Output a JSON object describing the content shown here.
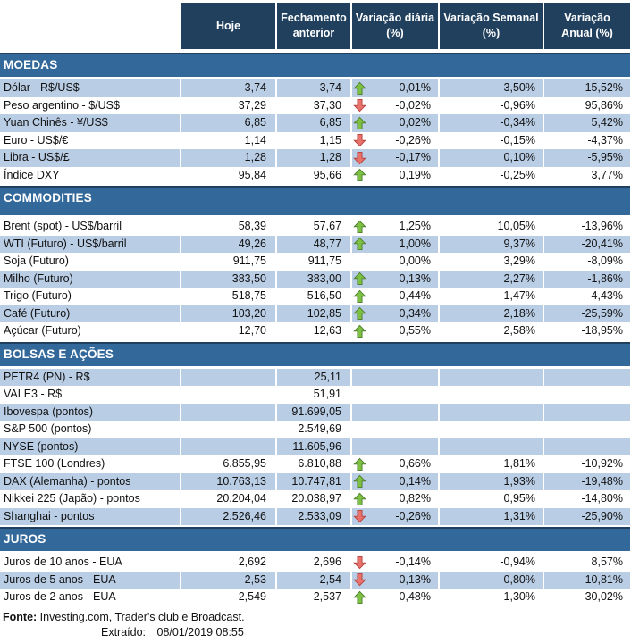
{
  "colors": {
    "header_navy": "#20405E",
    "section_blue": "#33689B",
    "row_blue": "#B9CDE5",
    "up_fill": "#7DC142",
    "up_stroke": "#4E7D2F",
    "down_fill": "#E8736C",
    "down_stroke": "#B8413D"
  },
  "header": {
    "cols": [
      {
        "l1": "Hoje",
        "l2": ""
      },
      {
        "l1": "Fechamento",
        "l2": "anterior"
      },
      {
        "l1": "Variação diária",
        "l2": "(%)"
      },
      {
        "l1": "Variação Semanal",
        "l2": "(%)"
      },
      {
        "l1": "Variação",
        "l2": "Anual (%)"
      }
    ]
  },
  "sections": [
    {
      "title": "MOEDAS",
      "rows": [
        {
          "label": "Dólar - R$/US$",
          "hoje": "3,74",
          "fechamento": "3,74",
          "arrow": "up",
          "diaria": "0,01%",
          "semanal": "-3,50%",
          "anual": "15,52%",
          "shade": true
        },
        {
          "label": "Peso argentino - $/US$",
          "hoje": "37,29",
          "fechamento": "37,30",
          "arrow": "down",
          "diaria": "-0,02%",
          "semanal": "-0,96%",
          "anual": "95,86%",
          "shade": false
        },
        {
          "label": "Yuan Chinês - ¥/US$",
          "hoje": "6,85",
          "fechamento": "6,85",
          "arrow": "up",
          "diaria": "0,02%",
          "semanal": "-0,34%",
          "anual": "5,42%",
          "shade": true
        },
        {
          "label": "Euro - US$/€",
          "hoje": "1,14",
          "fechamento": "1,15",
          "arrow": "down",
          "diaria": "-0,26%",
          "semanal": "-0,15%",
          "anual": "-4,37%",
          "shade": false
        },
        {
          "label": "Libra - US$/£",
          "hoje": "1,28",
          "fechamento": "1,28",
          "arrow": "down",
          "diaria": "-0,17%",
          "semanal": "0,10%",
          "anual": "-5,95%",
          "shade": true
        },
        {
          "label": "Índice DXY",
          "hoje": "95,84",
          "fechamento": "95,66",
          "arrow": "up",
          "diaria": "0,19%",
          "semanal": "-0,25%",
          "anual": "3,77%",
          "shade": false
        }
      ]
    },
    {
      "title": "COMMODITIES",
      "rows": [
        {
          "label": "Brent (spot) - US$/barril",
          "hoje": "58,39",
          "fechamento": "57,67",
          "arrow": "up",
          "diaria": "1,25%",
          "semanal": "10,05%",
          "anual": "-13,96%",
          "shade": false
        },
        {
          "label": "WTI (Futuro) - US$/barril",
          "hoje": "49,26",
          "fechamento": "48,77",
          "arrow": "up",
          "diaria": "1,00%",
          "semanal": "9,37%",
          "anual": "-20,41%",
          "shade": true
        },
        {
          "label": "Soja (Futuro)",
          "hoje": "911,75",
          "fechamento": "911,75",
          "arrow": "none",
          "diaria": "0,00%",
          "semanal": "3,29%",
          "anual": "-8,09%",
          "shade": false
        },
        {
          "label": "Milho (Futuro)",
          "hoje": "383,50",
          "fechamento": "383,00",
          "arrow": "up",
          "diaria": "0,13%",
          "semanal": "2,27%",
          "anual": "-1,86%",
          "shade": true
        },
        {
          "label": "Trigo (Futuro)",
          "hoje": "518,75",
          "fechamento": "516,50",
          "arrow": "up",
          "diaria": "0,44%",
          "semanal": "1,47%",
          "anual": "4,43%",
          "shade": false
        },
        {
          "label": "Café (Futuro)",
          "hoje": "103,20",
          "fechamento": "102,85",
          "arrow": "up",
          "diaria": "0,34%",
          "semanal": "2,18%",
          "anual": "-25,59%",
          "shade": true
        },
        {
          "label": "Açúcar (Futuro)",
          "hoje": "12,70",
          "fechamento": "12,63",
          "arrow": "up",
          "diaria": "0,55%",
          "semanal": "2,58%",
          "anual": "-18,95%",
          "shade": false
        }
      ]
    },
    {
      "title": "BOLSAS E AÇÕES",
      "rows": [
        {
          "label": "PETR4 (PN) - R$",
          "hoje": "",
          "fechamento": "25,11",
          "arrow": "none",
          "diaria": "",
          "semanal": "",
          "anual": "",
          "shade": true
        },
        {
          "label": "VALE3 - R$",
          "hoje": "",
          "fechamento": "51,91",
          "arrow": "none",
          "diaria": "",
          "semanal": "",
          "anual": "",
          "shade": false
        },
        {
          "label": "Ibovespa (pontos)",
          "hoje": "",
          "fechamento": "91.699,05",
          "arrow": "none",
          "diaria": "",
          "semanal": "",
          "anual": "",
          "shade": true
        },
        {
          "label": "S&P 500 (pontos)",
          "hoje": "",
          "fechamento": "2.549,69",
          "arrow": "none",
          "diaria": "",
          "semanal": "",
          "anual": "",
          "shade": false
        },
        {
          "label": "NYSE (pontos)",
          "hoje": "",
          "fechamento": "11.605,96",
          "arrow": "none",
          "diaria": "",
          "semanal": "",
          "anual": "",
          "shade": true
        },
        {
          "label": "FTSE 100 (Londres)",
          "hoje": "6.855,95",
          "fechamento": "6.810,88",
          "arrow": "up",
          "diaria": "0,66%",
          "semanal": "1,81%",
          "anual": "-10,92%",
          "shade": false
        },
        {
          "label": "DAX (Alemanha) - pontos",
          "hoje": "10.763,13",
          "fechamento": "10.747,81",
          "arrow": "up",
          "diaria": "0,14%",
          "semanal": "1,93%",
          "anual": "-19,48%",
          "shade": true
        },
        {
          "label": "Nikkei 225 (Japão) - pontos",
          "hoje": "20.204,04",
          "fechamento": "20.038,97",
          "arrow": "up",
          "diaria": "0,82%",
          "semanal": "0,95%",
          "anual": "-14,80%",
          "shade": false
        },
        {
          "label": "Shanghai - pontos",
          "hoje": "2.526,46",
          "fechamento": "2.533,09",
          "arrow": "down",
          "diaria": "-0,26%",
          "semanal": "1,31%",
          "anual": "-25,90%",
          "shade": true
        }
      ]
    },
    {
      "title": "JUROS",
      "rows": [
        {
          "label": "Juros de 10 anos - EUA",
          "hoje": "2,692",
          "fechamento": "2,696",
          "arrow": "down",
          "diaria": "-0,14%",
          "semanal": "-0,94%",
          "anual": "8,57%",
          "shade": false
        },
        {
          "label": "Juros de 5 anos - EUA",
          "hoje": "2,53",
          "fechamento": "2,54",
          "arrow": "down",
          "diaria": "-0,13%",
          "semanal": "-0,80%",
          "anual": "10,81%",
          "shade": true
        },
        {
          "label": "Juros de 2 anos - EUA",
          "hoje": "2,549",
          "fechamento": "2,537",
          "arrow": "up",
          "diaria": "0,48%",
          "semanal": "1,30%",
          "anual": "30,02%",
          "shade": false
        }
      ]
    }
  ],
  "footer": {
    "fonte_label": "Fonte:",
    "fonte_text": "Investing.com, Trader's club e Broadcast.",
    "extraido_label": "Extraído:",
    "extraido_value": "08/01/2019 08:55"
  }
}
